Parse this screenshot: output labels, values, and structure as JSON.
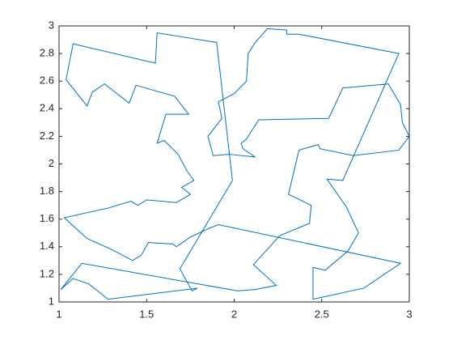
{
  "chart_data": {
    "type": "line",
    "x": [
      1.79,
      1.28,
      1.17,
      1.08,
      1.01,
      1.13,
      2.02,
      2.12,
      2.24,
      2.11,
      2.26,
      2.43,
      2.44,
      2.31,
      2.37,
      2.48,
      2.49,
      2.68,
      2.94,
      3.0,
      2.96,
      2.95,
      2.88,
      2.62,
      2.54,
      2.14,
      2.07,
      2.04,
      2.05,
      2.12,
      1.97,
      1.88,
      1.85,
      1.93,
      1.91,
      2.0,
      2.07,
      2.08,
      2.12,
      2.19,
      2.3,
      2.3,
      2.37,
      2.94,
      2.62,
      2.53,
      2.64,
      2.71,
      2.65,
      2.52,
      2.45,
      2.45,
      2.74,
      2.95,
      1.91,
      1.85,
      1.75,
      1.67,
      1.65,
      1.51,
      1.47,
      1.42,
      1.3,
      1.16,
      1.03,
      1.28,
      1.41,
      1.45,
      1.5,
      1.67,
      1.75,
      1.7,
      1.77,
      1.73,
      1.68,
      1.6,
      1.56,
      1.61,
      1.74,
      1.66,
      1.44,
      1.4,
      1.26,
      1.19,
      1.16,
      1.04,
      1.08,
      1.55,
      1.56,
      1.9,
      1.99,
      1.69,
      1.76,
      1.79
    ],
    "series": [
      {
        "color": "#0072bd",
        "values": [
          1.1,
          1.02,
          1.13,
          1.17,
          1.09,
          1.28,
          1.08,
          1.09,
          1.12,
          1.27,
          1.48,
          1.57,
          1.7,
          1.78,
          2.1,
          2.14,
          2.11,
          2.06,
          2.1,
          2.2,
          2.3,
          2.43,
          2.58,
          2.55,
          2.33,
          2.32,
          2.18,
          2.15,
          2.11,
          2.05,
          2.07,
          2.06,
          2.2,
          2.33,
          2.45,
          2.51,
          2.6,
          2.8,
          2.88,
          2.98,
          2.97,
          2.94,
          2.94,
          2.8,
          1.88,
          1.89,
          1.69,
          1.5,
          1.37,
          1.23,
          1.25,
          1.02,
          1.1,
          1.28,
          1.56,
          1.53,
          1.47,
          1.4,
          1.42,
          1.43,
          1.34,
          1.3,
          1.38,
          1.46,
          1.61,
          1.68,
          1.73,
          1.7,
          1.74,
          1.72,
          1.78,
          1.83,
          1.88,
          1.95,
          2.07,
          2.17,
          2.15,
          2.36,
          2.36,
          2.49,
          2.57,
          2.44,
          2.58,
          2.52,
          2.42,
          2.61,
          2.87,
          2.73,
          2.95,
          2.88,
          1.88,
          1.24,
          1.08,
          1.1
        ]
      }
    ],
    "xlim": [
      1,
      3
    ],
    "xticks": [
      1,
      1.5,
      2,
      2.5,
      3
    ],
    "ylim": [
      1,
      3
    ],
    "yticks": [
      1,
      1.2,
      1.4,
      1.6,
      1.8,
      2,
      2.2,
      2.4,
      2.6,
      2.8,
      3
    ],
    "grid": false
  }
}
